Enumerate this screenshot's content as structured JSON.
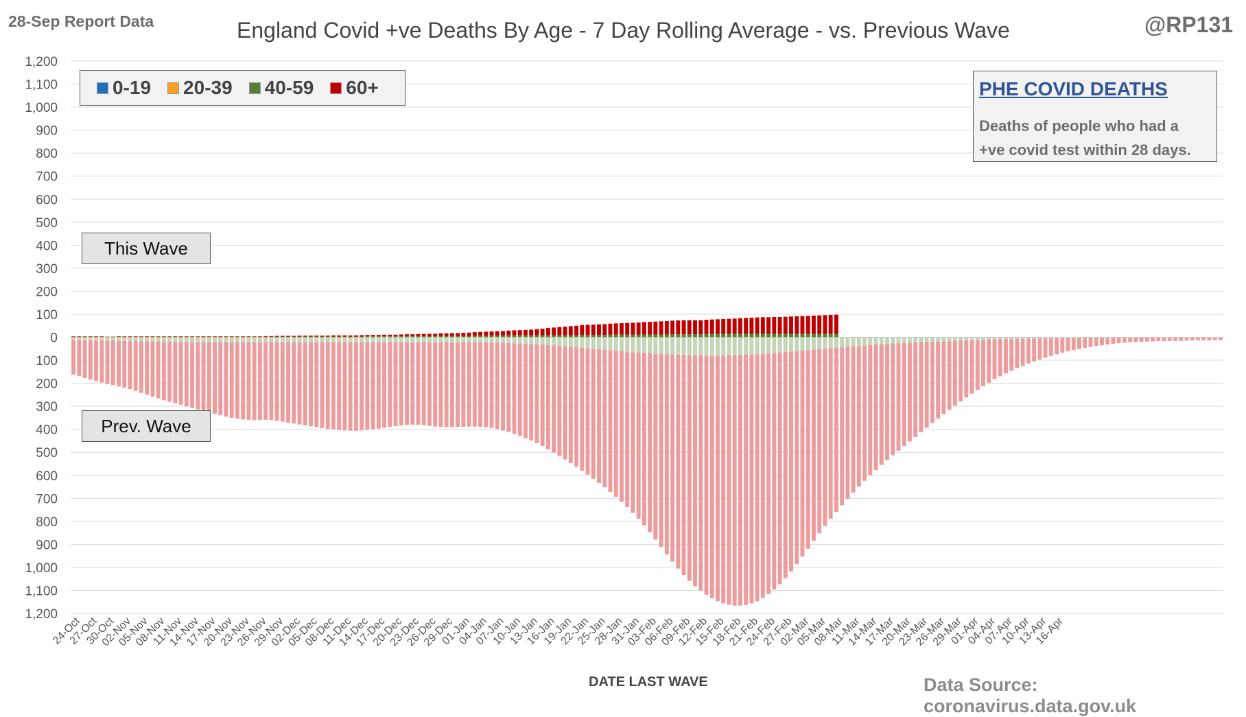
{
  "header": {
    "report_date": "28-Sep Report Data",
    "handle": "@RP131"
  },
  "footer": {
    "data_source": "Data Source: coronavirus.data.gov.uk"
  },
  "info_box": {
    "heading": "PHE COVID DEATHS",
    "text_line1": "Deaths of people who had a",
    "text_line2": "+ve covid test within 28 days."
  },
  "annotations": {
    "this_wave": "This Wave",
    "prev_wave": "Prev. Wave"
  },
  "colors": {
    "age_0_19": "#1f6fc0",
    "age_20_39": "#f4a020",
    "age_40_59": "#538135",
    "age_60_plus": "#c00000",
    "prev_60_plus": "#ec9c9c",
    "prev_40_59": "#c5d6b8",
    "gridline": "#d9d9d9"
  },
  "chart_data": {
    "type": "bar",
    "title": "England Covid +ve Deaths By Age - 7 Day Rolling Average - vs. Previous Wave",
    "xlabel": "DATE LAST WAVE",
    "ylabel": "",
    "ylim": [
      -1200,
      1200
    ],
    "y_ticks": [
      1200,
      1100,
      1000,
      900,
      800,
      700,
      600,
      500,
      400,
      300,
      200,
      100,
      0,
      -100,
      -200,
      -300,
      -400,
      -500,
      -600,
      -700,
      -800,
      -900,
      -1000,
      -1100,
      -1200
    ],
    "y_tick_labels": [
      "1,200",
      "1,100",
      "1,000",
      "900",
      "800",
      "700",
      "600",
      "500",
      "400",
      "300",
      "200",
      "100",
      "0",
      "100",
      "200",
      "300",
      "400",
      "500",
      "600",
      "700",
      "800",
      "900",
      "1,000",
      "1,100",
      "1,200"
    ],
    "x_start": "24-Oct",
    "x_tick_labels": [
      "24-Oct",
      "27-Oct",
      "30-Oct",
      "02-Nov",
      "05-Nov",
      "08-Nov",
      "11-Nov",
      "14-Nov",
      "17-Nov",
      "20-Nov",
      "23-Nov",
      "26-Nov",
      "29-Nov",
      "02-Dec",
      "05-Dec",
      "08-Dec",
      "11-Dec",
      "14-Dec",
      "17-Dec",
      "20-Dec",
      "23-Dec",
      "26-Dec",
      "29-Dec",
      "01-Jan",
      "04-Jan",
      "07-Jan",
      "10-Jan",
      "13-Jan",
      "16-Jan",
      "19-Jan",
      "22-Jan",
      "25-Jan",
      "28-Jan",
      "31-Jan",
      "03-Feb",
      "06-Feb",
      "09-Feb",
      "12-Feb",
      "15-Feb",
      "18-Feb",
      "21-Feb",
      "24-Feb",
      "27-Feb",
      "02-Mar",
      "05-Mar",
      "08-Mar",
      "11-Mar",
      "14-Mar",
      "17-Mar",
      "20-Mar",
      "23-Mar",
      "26-Mar",
      "29-Mar",
      "01-Apr",
      "04-Apr",
      "07-Apr",
      "10-Apr",
      "13-Apr",
      "16-Apr"
    ],
    "legend": [
      "0-19",
      "20-39",
      "40-59",
      "60+"
    ],
    "legend_position": "top-left",
    "grid": true,
    "series": [
      {
        "name": "0-19",
        "values": [
          0,
          0,
          0,
          0,
          0,
          0,
          0,
          0,
          0,
          0,
          0,
          0,
          0,
          0,
          0,
          0,
          0,
          0,
          0,
          0,
          0,
          0,
          0,
          0,
          0,
          0,
          0,
          0,
          0,
          0,
          0,
          0,
          0,
          0,
          0,
          0,
          0,
          0,
          0,
          0,
          0,
          0,
          0,
          0,
          0,
          0,
          0,
          0,
          0,
          0,
          0,
          0,
          0,
          0,
          0,
          0,
          0,
          0,
          0,
          0,
          0,
          0,
          0,
          0,
          0,
          0,
          0,
          0,
          0,
          0,
          0,
          0,
          0,
          0,
          0,
          0,
          0,
          0,
          0,
          0,
          0,
          0,
          0,
          0,
          0,
          0,
          0,
          0,
          0,
          0,
          0,
          0,
          0,
          0,
          0,
          0,
          0,
          0,
          0,
          0,
          0,
          0,
          0,
          0,
          0,
          0,
          0,
          0,
          0,
          0,
          0,
          0,
          0,
          0,
          0,
          0,
          0,
          0,
          0,
          0,
          0,
          0,
          0,
          0,
          0,
          0,
          0,
          0,
          0,
          0,
          0,
          0,
          0,
          0,
          0,
          0
        ]
      },
      {
        "name": "20-39",
        "values": [
          1,
          1,
          1,
          1,
          1,
          1,
          1,
          1,
          1,
          1,
          1,
          1,
          1,
          1,
          1,
          1,
          1,
          1,
          1,
          1,
          1,
          1,
          1,
          1,
          1,
          1,
          1,
          1,
          1,
          1,
          1,
          1,
          1,
          1,
          1,
          1,
          1,
          1,
          1,
          1,
          1,
          1,
          1,
          1,
          1,
          1,
          1,
          1,
          1,
          1,
          1,
          1,
          1,
          1,
          1,
          1,
          1,
          1,
          1,
          1,
          1,
          1,
          1,
          1,
          1,
          1,
          1,
          1,
          1,
          1,
          1,
          1,
          1,
          1,
          1,
          1,
          1,
          1,
          1,
          1,
          1,
          1,
          1,
          1,
          1,
          1,
          1,
          1,
          1,
          1,
          1,
          1,
          1,
          1,
          1,
          1,
          1,
          1,
          1,
          1,
          1,
          1,
          1,
          1,
          1,
          1,
          1,
          1,
          1,
          1,
          1,
          1,
          1,
          1,
          1,
          1,
          1,
          1,
          1,
          1,
          1,
          1,
          1,
          1,
          1,
          1,
          1,
          1,
          1,
          1,
          1,
          1,
          1,
          1,
          1,
          1
        ]
      },
      {
        "name": "40-59",
        "values": [
          1,
          1,
          1,
          1,
          1,
          1,
          1,
          1,
          1,
          1,
          1,
          1,
          1,
          1,
          1,
          1,
          1,
          1,
          1,
          1,
          1,
          1,
          1,
          1,
          1,
          1,
          1,
          1,
          1,
          1,
          1,
          1,
          1,
          1,
          1,
          1,
          2,
          2,
          2,
          2,
          2,
          2,
          2,
          2,
          2,
          2,
          2,
          2,
          2,
          2,
          2,
          2,
          3,
          3,
          3,
          3,
          3,
          3,
          3,
          4,
          4,
          4,
          4,
          4,
          4,
          5,
          5,
          5,
          5,
          5,
          5,
          6,
          6,
          6,
          6,
          6,
          6,
          7,
          7,
          7,
          7,
          7,
          7,
          7,
          8,
          8,
          8,
          8,
          8,
          8,
          9,
          9,
          9,
          9,
          9,
          10,
          10,
          10,
          10,
          10,
          10,
          11,
          11,
          11,
          11,
          11,
          12,
          12,
          12,
          12,
          12,
          12,
          13,
          13,
          13,
          13,
          13,
          13,
          14,
          14,
          14,
          14,
          14,
          13,
          13,
          13,
          13,
          13,
          13,
          13,
          13,
          13,
          13,
          13,
          13,
          13
        ]
      },
      {
        "name": "60+",
        "values": [
          2,
          2,
          2,
          2,
          2,
          2,
          1,
          1,
          2,
          2,
          2,
          2,
          2,
          2,
          2,
          2,
          2,
          2,
          2,
          2,
          2,
          2,
          2,
          2,
          2,
          2,
          2,
          2,
          2,
          2,
          2,
          2,
          2,
          2,
          3,
          3,
          3,
          3,
          3,
          3,
          4,
          4,
          4,
          4,
          4,
          4,
          5,
          5,
          5,
          5,
          5,
          6,
          6,
          6,
          6,
          7,
          7,
          7,
          8,
          8,
          8,
          9,
          9,
          10,
          10,
          11,
          11,
          12,
          12,
          13,
          14,
          15,
          16,
          17,
          18,
          19,
          20,
          21,
          22,
          23,
          24,
          25,
          27,
          29,
          31,
          33,
          35,
          37,
          39,
          41,
          43,
          44,
          45,
          46,
          47,
          48,
          49,
          50,
          51,
          52,
          53,
          54,
          55,
          56,
          57,
          58,
          59,
          60,
          61,
          61,
          61,
          61,
          62,
          63,
          64,
          65,
          66,
          67,
          68,
          69,
          70,
          71,
          72,
          73,
          74,
          74,
          75,
          76,
          77,
          78,
          79,
          80,
          81,
          82,
          83,
          84
        ]
      },
      {
        "name": "Prev. Wave 60+",
        "values": [
          150,
          157,
          164,
          171,
          177,
          183,
          188,
          193,
          198,
          203,
          209,
          216,
          224,
          232,
          240,
          247,
          254,
          260,
          266,
          272,
          278,
          285,
          292,
          299,
          305,
          311,
          317,
          323,
          328,
          332,
          335,
          337,
          338,
          338,
          337,
          338,
          341,
          345,
          349,
          353,
          357,
          361,
          365,
          369,
          373,
          376,
          379,
          381,
          383,
          384,
          384,
          383,
          381,
          378,
          375,
          371,
          367,
          364,
          361,
          359,
          358,
          358,
          360,
          363,
          366,
          368,
          369,
          369,
          368,
          367,
          366,
          366,
          367,
          369,
          372,
          376,
          381,
          387,
          394,
          402,
          411,
          420,
          430,
          441,
          453,
          465,
          478,
          491,
          505,
          519,
          534,
          549,
          565,
          581,
          598,
          616,
          635,
          655,
          676,
          699,
          723,
          749,
          777,
          807,
          838,
          869,
          900,
          929,
          956,
          981,
          1003,
          1022,
          1039,
          1054,
          1067,
          1077,
          1084,
          1088,
          1089,
          1087,
          1082,
          1073,
          1061,
          1046,
          1028,
          1007,
          983,
          956,
          926,
          895,
          863,
          831,
          800,
          770,
          741,
          713,
          686,
          660,
          635,
          611,
          588,
          566,
          545,
          525,
          505,
          486,
          467,
          448,
          429,
          410,
          391,
          372,
          353,
          334,
          316,
          298,
          281,
          264,
          248,
          232,
          217,
          202,
          188,
          174,
          161,
          149,
          138,
          127,
          117,
          108,
          99,
          91,
          83,
          76,
          69,
          63,
          57,
          52,
          47,
          43,
          39,
          35,
          32,
          29,
          26,
          24,
          22,
          20,
          19,
          18,
          17,
          16,
          15,
          15,
          14,
          14,
          13,
          13,
          12,
          12,
          12,
          12,
          11,
          11
        ]
      },
      {
        "name": "Prev. Wave 40-59",
        "values": [
          12,
          12,
          13,
          13,
          14,
          14,
          15,
          15,
          16,
          16,
          17,
          17,
          18,
          18,
          19,
          19,
          20,
          20,
          21,
          21,
          22,
          22,
          22,
          22,
          22,
          22,
          22,
          22,
          22,
          22,
          22,
          22,
          22,
          22,
          22,
          22,
          22,
          22,
          22,
          22,
          22,
          22,
          22,
          22,
          22,
          22,
          22,
          22,
          22,
          22,
          22,
          22,
          22,
          22,
          22,
          22,
          22,
          22,
          22,
          22,
          22,
          22,
          22,
          22,
          22,
          22,
          22,
          22,
          22,
          22,
          22,
          22,
          22,
          22,
          22,
          23,
          24,
          25,
          26,
          27,
          28,
          29,
          30,
          32,
          34,
          36,
          38,
          40,
          42,
          44,
          46,
          48,
          50,
          52,
          54,
          56,
          58,
          60,
          62,
          64,
          66,
          68,
          70,
          72,
          73,
          74,
          75,
          76,
          77,
          78,
          79,
          79,
          80,
          80,
          80,
          80,
          79,
          78,
          77,
          76,
          75,
          74,
          72,
          70,
          68,
          66,
          64,
          62,
          60,
          58,
          56,
          54,
          52,
          50,
          48,
          46,
          44,
          42,
          40,
          38,
          36,
          34,
          32,
          30,
          28,
          27,
          26,
          25,
          24,
          23,
          22,
          21,
          20,
          19,
          18,
          17,
          16,
          15,
          14,
          13,
          12,
          11,
          10,
          9,
          9,
          8,
          8,
          7,
          7,
          6,
          6,
          6,
          5,
          5,
          5,
          4,
          4,
          4,
          4,
          3,
          3,
          3,
          3,
          3,
          3,
          2,
          2,
          2,
          2,
          2,
          2,
          2,
          2,
          2,
          2,
          2,
          2,
          2,
          2,
          2,
          2,
          2,
          2,
          2,
          2
        ]
      }
    ]
  }
}
